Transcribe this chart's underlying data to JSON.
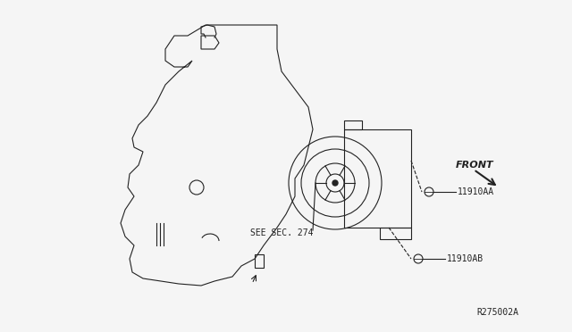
{
  "bg_color": "#f5f5f5",
  "title": "",
  "diagram_id": "R275002A",
  "label_1": "11910AA",
  "label_2": "11910AB",
  "label_see_sec": "SEE SEC. 274",
  "label_front": "FRONT",
  "line_color": "#222222",
  "text_color": "#222222",
  "figsize": [
    6.4,
    3.72
  ],
  "dpi": 100
}
